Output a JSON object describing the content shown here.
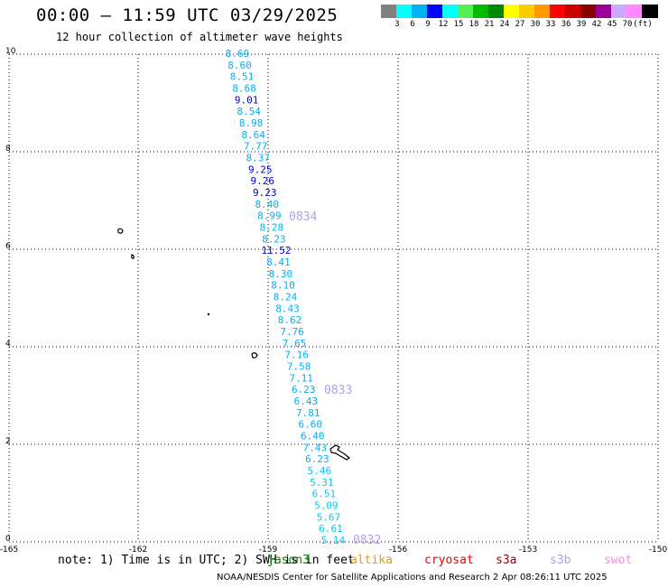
{
  "header": {
    "title": "00:00 – 11:59 UTC 03/29/2025",
    "subtitle": "12 hour collection of altimeter wave heights"
  },
  "color_scale": {
    "colors": [
      "#808080",
      "#00ffff",
      "#00b0f0",
      "#0000ff",
      "#00ffff",
      "#55ee55",
      "#00bb00",
      "#008800",
      "#ffff00",
      "#ffcc00",
      "#ff9900",
      "#ff0000",
      "#cc0000",
      "#880000",
      "#990099",
      "#ccaaff",
      "#ff88ff",
      "#000000"
    ],
    "labels": [
      "3",
      "6",
      "9",
      "12",
      "15",
      "18",
      "21",
      "24",
      "27",
      "30",
      "33",
      "36",
      "39",
      "42",
      "45",
      "70",
      "(ft)"
    ]
  },
  "axes": {
    "y_ticks": [
      "10",
      "8",
      "6",
      "4",
      "2",
      "0"
    ],
    "x_ticks": [
      "-165",
      "-162",
      "-159",
      "-156",
      "-153",
      "-150"
    ]
  },
  "track": {
    "values": [
      {
        "v": "8.69",
        "c": "#00b0f0"
      },
      {
        "v": "8.60",
        "c": "#00b0f0"
      },
      {
        "v": "8.51",
        "c": "#00b0f0"
      },
      {
        "v": "8.68",
        "c": "#00b0f0"
      },
      {
        "v": "9.01",
        "c": "#0000d0"
      },
      {
        "v": "8.54",
        "c": "#00b0f0"
      },
      {
        "v": "8.98",
        "c": "#00b0f0"
      },
      {
        "v": "8.64",
        "c": "#00b0f0"
      },
      {
        "v": "7.77",
        "c": "#00b0f0"
      },
      {
        "v": "8.37",
        "c": "#00b0f0"
      },
      {
        "v": "9.25",
        "c": "#0000d0"
      },
      {
        "v": "9.26",
        "c": "#0000d0"
      },
      {
        "v": "9.23",
        "c": "#0000d0"
      },
      {
        "v": "8.40",
        "c": "#00b0f0"
      },
      {
        "v": "8.99",
        "c": "#00b0f0"
      },
      {
        "v": "8.28",
        "c": "#00b0f0"
      },
      {
        "v": "8.23",
        "c": "#00b0f0"
      },
      {
        "v": "11.52",
        "c": "#0000d0"
      },
      {
        "v": "8.41",
        "c": "#00b0f0"
      },
      {
        "v": "8.30",
        "c": "#00b0f0"
      },
      {
        "v": "8.10",
        "c": "#00b0f0"
      },
      {
        "v": "8.24",
        "c": "#00b0f0"
      },
      {
        "v": "8.43",
        "c": "#00b0f0"
      },
      {
        "v": "8.62",
        "c": "#00b0f0"
      },
      {
        "v": "7.76",
        "c": "#00b0f0"
      },
      {
        "v": "7.65",
        "c": "#00b0f0"
      },
      {
        "v": "7.16",
        "c": "#00b0f0"
      },
      {
        "v": "7.58",
        "c": "#00b0f0"
      },
      {
        "v": "7.11",
        "c": "#00b0f0"
      },
      {
        "v": "6.23",
        "c": "#00b0f0"
      },
      {
        "v": "6.43",
        "c": "#00b0f0"
      },
      {
        "v": "7.81",
        "c": "#00b0f0"
      },
      {
        "v": "6.60",
        "c": "#00b0f0"
      },
      {
        "v": "6.40",
        "c": "#00b0f0"
      },
      {
        "v": "7.43",
        "c": "#00b0f0"
      },
      {
        "v": "6.23",
        "c": "#00b0f0"
      },
      {
        "v": "5.46",
        "c": "#00ccf0"
      },
      {
        "v": "5.31",
        "c": "#00ccf0"
      },
      {
        "v": "6.51",
        "c": "#00ccf0"
      },
      {
        "v": "5.09",
        "c": "#00ccf0"
      },
      {
        "v": "5.67",
        "c": "#00ccf0"
      },
      {
        "v": "6.61",
        "c": "#00ccf0"
      },
      {
        "v": "5.14",
        "c": "#00ccf0"
      }
    ],
    "time_labels": [
      "0834",
      "0833",
      "0832"
    ],
    "time_label_color": "#b4a0e6"
  },
  "footer": {
    "note": "note: 1) Time is in UTC; 2) SWH is in feet",
    "satellites": [
      {
        "name": "jason3",
        "color": "#008800"
      },
      {
        "name": "altika",
        "color": "#ee9900"
      },
      {
        "name": "cryosat",
        "color": "#ee0000"
      },
      {
        "name": "s3a",
        "color": "#990000"
      },
      {
        "name": "s3b",
        "color": "#b4a0e6"
      },
      {
        "name": "swot",
        "color": "#ff88dd"
      }
    ],
    "credit": "NOAA/NESDIS Center for Satellite Applications and Research     2 Apr 08:26:11 UTC 2025"
  }
}
